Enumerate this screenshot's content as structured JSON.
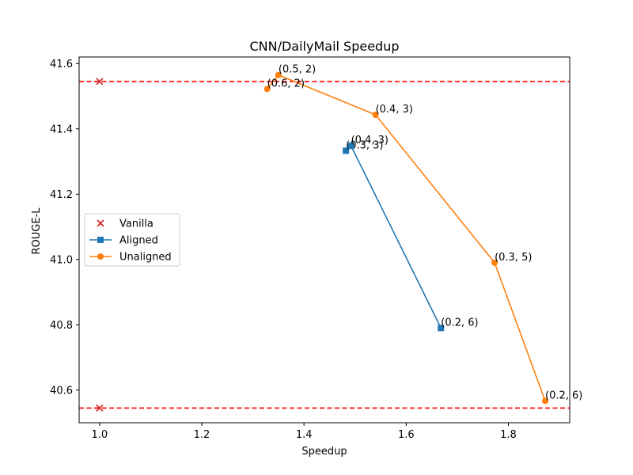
{
  "chart_data": {
    "type": "line",
    "title": "CNN/DailyMail Speedup",
    "xlabel": "Speedup",
    "ylabel": "ROUGE-L",
    "xlim": [
      0.96,
      1.92
    ],
    "ylim": [
      40.5,
      41.62
    ],
    "x_ticks": [
      1.0,
      1.2,
      1.4,
      1.6,
      1.8
    ],
    "y_ticks": [
      40.6,
      40.8,
      41.0,
      41.2,
      41.4,
      41.6
    ],
    "grid": false,
    "legend_position": "center-left",
    "reference_lines": [
      {
        "y": 41.545,
        "color": "#ff0000",
        "style": "dashed"
      },
      {
        "y": 40.545,
        "color": "#ff0000",
        "style": "dashed"
      }
    ],
    "series": [
      {
        "name": "Vanilla",
        "kind": "scatter",
        "marker": "x",
        "color": "#d62728",
        "points": [
          {
            "x": 1.0,
            "y": 41.545,
            "label": ""
          },
          {
            "x": 1.0,
            "y": 40.545,
            "label": ""
          }
        ]
      },
      {
        "name": "Aligned",
        "kind": "line",
        "marker": "square",
        "color": "#1f77b4",
        "points": [
          {
            "x": 1.482,
            "y": 41.333,
            "label": "(0.3, 3)"
          },
          {
            "x": 1.492,
            "y": 41.348,
            "label": "(0.4, 3)"
          },
          {
            "x": 1.668,
            "y": 40.79,
            "label": "(0.2, 6)"
          }
        ]
      },
      {
        "name": "Unaligned",
        "kind": "line",
        "marker": "circle",
        "color": "#ff7f0e",
        "points": [
          {
            "x": 1.328,
            "y": 41.522,
            "label": "(0.6, 2)"
          },
          {
            "x": 1.35,
            "y": 41.565,
            "label": "(0.5, 2)"
          },
          {
            "x": 1.54,
            "y": 41.443,
            "label": "(0.4, 3)"
          },
          {
            "x": 1.773,
            "y": 40.99,
            "label": "(0.3, 5)"
          },
          {
            "x": 1.872,
            "y": 40.567,
            "label": "(0.2, 6)"
          }
        ]
      }
    ]
  }
}
